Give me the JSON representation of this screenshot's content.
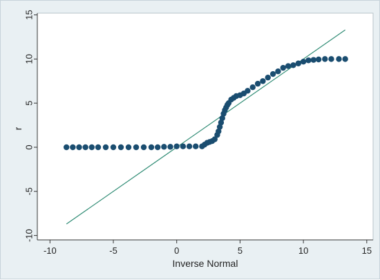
{
  "chart_data": {
    "type": "scatter",
    "title": "",
    "xlabel": "Inverse Normal",
    "ylabel": "r",
    "xlim": [
      -11,
      15.5
    ],
    "ylim": [
      -10.5,
      15.2
    ],
    "xticks": [
      -10,
      -5,
      0,
      5,
      10,
      15
    ],
    "yticks": [
      -10,
      -5,
      0,
      5,
      10,
      15
    ],
    "xtick_labels": [
      "-10",
      "-5",
      "0",
      "5",
      "10",
      "15"
    ],
    "ytick_labels": [
      "-10",
      "-5",
      "0",
      "5",
      "10",
      "15"
    ],
    "grid": false,
    "legend": "none",
    "colors": {
      "background": "#e9f0f3",
      "plot_area": "#ffffff",
      "markers": "#1a4d70",
      "reference_line": "#2e8b74"
    },
    "reference_line": {
      "x": [
        -8.7,
        13.3
      ],
      "y": [
        -8.7,
        13.3
      ]
    },
    "series": [
      {
        "values_x": [
          -8.7,
          -8.2,
          -7.7,
          -7.2,
          -6.7,
          -6.2,
          -5.6,
          -5.0,
          -4.4,
          -3.8,
          -3.2,
          -2.6,
          -2.0,
          -1.5,
          -1.0,
          -0.5,
          0.0,
          0.5,
          1.0,
          1.5,
          2.0,
          2.2,
          2.4,
          2.6,
          2.8,
          3.0,
          3.2,
          3.3,
          3.4,
          3.5,
          3.6,
          3.7,
          3.8,
          3.9,
          4.0,
          4.1,
          4.3,
          4.5,
          4.7,
          5.0,
          5.3,
          5.6,
          6.0,
          6.4,
          6.8,
          7.2,
          7.6,
          8.0,
          8.4,
          8.8,
          9.2,
          9.6,
          10.0,
          10.4,
          10.8,
          11.2,
          11.7,
          12.2,
          12.8,
          13.3
        ],
        "values_y": [
          0.0,
          0.0,
          0.0,
          0.0,
          0.0,
          0.0,
          0.0,
          0.0,
          0.0,
          0.0,
          0.0,
          0.0,
          0.0,
          0.0,
          0.05,
          0.05,
          0.1,
          0.1,
          0.1,
          0.1,
          0.1,
          0.3,
          0.5,
          0.6,
          0.7,
          0.9,
          1.4,
          1.8,
          2.3,
          2.8,
          3.3,
          3.8,
          4.2,
          4.5,
          4.8,
          5.0,
          5.4,
          5.6,
          5.8,
          5.9,
          6.1,
          6.4,
          6.8,
          7.2,
          7.5,
          7.9,
          8.3,
          8.6,
          9.0,
          9.2,
          9.3,
          9.5,
          9.7,
          9.85,
          9.9,
          9.95,
          10.0,
          10.0,
          10.0,
          10.0
        ]
      }
    ]
  }
}
